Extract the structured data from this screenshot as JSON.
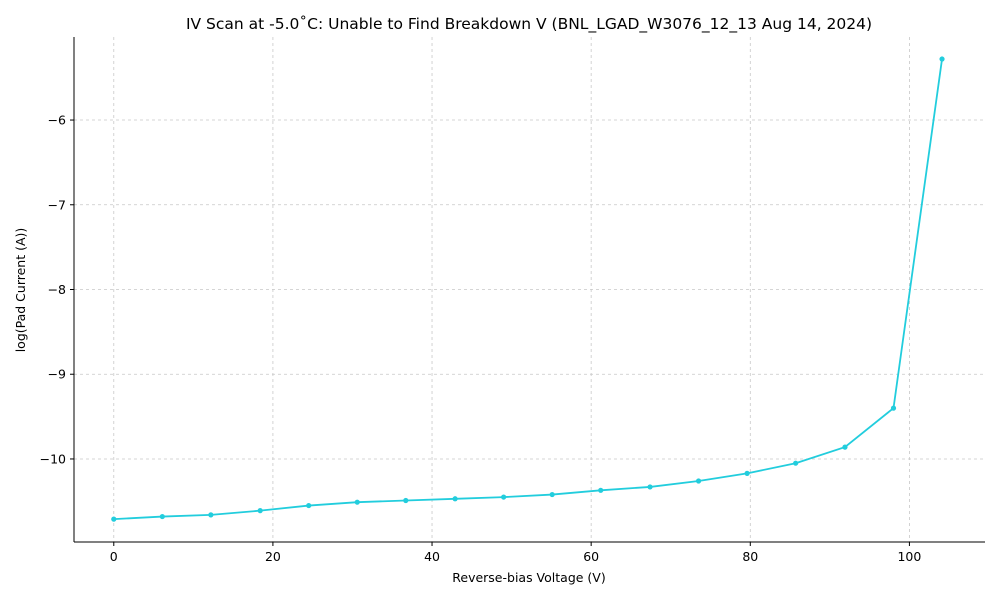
{
  "chart_data": {
    "type": "line",
    "title": "IV Scan at -5.0˚C: Unable to Find Breakdown V (BNL_LGAD_W3076_12_13 Aug 14, 2024)",
    "xlabel": "Reverse-bias Voltage (V)",
    "ylabel": "log(Pad Current (A))",
    "xlim": [
      -5,
      109.5
    ],
    "ylim": [
      -10.98,
      -5.02
    ],
    "xticks": [
      0,
      20,
      40,
      60,
      80,
      100
    ],
    "yticks": [
      -10,
      -9,
      -8,
      -7,
      -6
    ],
    "xtick_labels": [
      "0",
      "20",
      "40",
      "60",
      "80",
      "100"
    ],
    "ytick_labels": [
      "−10",
      "−9",
      "−8",
      "−7",
      "−6"
    ],
    "grid": true,
    "color": "#22cddd",
    "series": [
      {
        "x": [
          0,
          6.1,
          12.2,
          18.4,
          24.5,
          30.6,
          36.7,
          42.9,
          49.0,
          55.1,
          61.2,
          67.4,
          73.5,
          79.6,
          85.7,
          91.9,
          98.0,
          104.1
        ],
        "y": [
          -10.71,
          -10.68,
          -10.66,
          -10.61,
          -10.55,
          -10.51,
          -10.49,
          -10.47,
          -10.45,
          -10.42,
          -10.37,
          -10.33,
          -10.26,
          -10.17,
          -10.05,
          -9.86,
          -9.4,
          -5.28
        ]
      }
    ]
  }
}
